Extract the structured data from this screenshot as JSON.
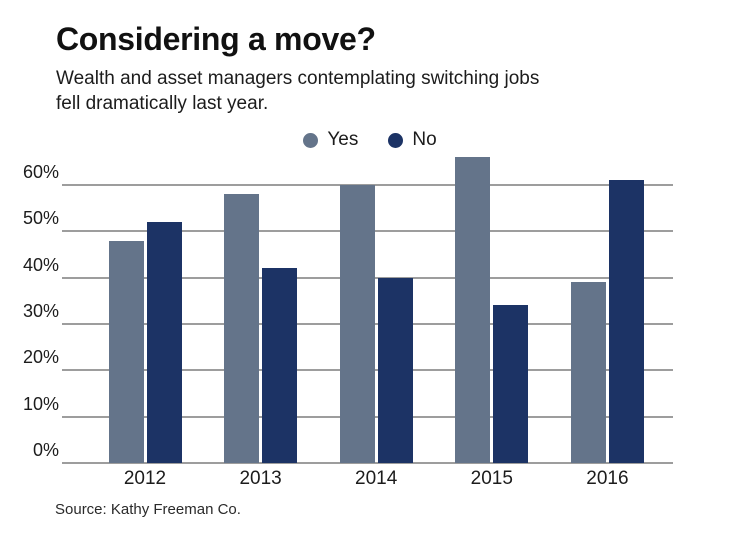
{
  "header": {
    "title": "Considering a move?",
    "subtitle_lines": [
      "Wealth and asset managers contemplating switching jobs",
      "fell dramatically last year."
    ]
  },
  "legend": [
    {
      "label": "Yes",
      "color": "#64748a"
    },
    {
      "label": "No",
      "color": "#1c3365"
    }
  ],
  "source": "Source: Kathy Freeman Co.",
  "chart_data": {
    "type": "bar",
    "title": "Considering a move?",
    "subtitle": "Wealth and asset managers contemplating switching jobs fell dramatically last year.",
    "categories": [
      "2012",
      "2013",
      "2014",
      "2015",
      "2016"
    ],
    "series": [
      {
        "name": "Yes",
        "color": "#64748a",
        "values": [
          48,
          58,
          60,
          66,
          39
        ]
      },
      {
        "name": "No",
        "color": "#1c3365",
        "values": [
          52,
          42,
          40,
          34,
          61
        ]
      }
    ],
    "xlabel": "",
    "ylabel": "",
    "y_ticks": [
      0,
      10,
      20,
      30,
      40,
      50,
      60
    ],
    "y_tick_suffix": "%",
    "ylim": [
      0,
      66
    ],
    "grid": "horizontal",
    "gridline_color": "#9d9d9d",
    "legend_position": "top-center",
    "source": "Source: Kathy Freeman Co."
  }
}
